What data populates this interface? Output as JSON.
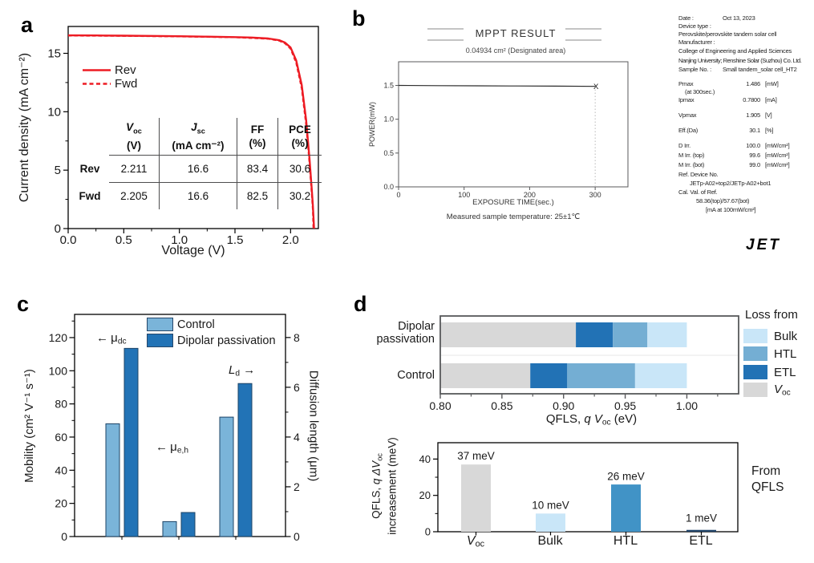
{
  "colors": {
    "red": "#ed1c24",
    "control_blue": "#7ab4d9",
    "dipolar_blue": "#2273b6",
    "bulk_blue": "#c9e6f8",
    "htl_blue": "#74aed3",
    "etl_blue": "#2272b5",
    "htl_solid": "#4193c6",
    "etl_dark": "#1f4469",
    "gray_bar": "#d8d8d8",
    "bar_edge": "#1d4467"
  },
  "panels": {
    "a": "a",
    "b": "b",
    "c": "c",
    "d": "d"
  },
  "panel_a": {
    "y_title": "Current density (mA cm⁻²)",
    "x_title": "Voltage (V)",
    "x_ticks": [
      "0.0",
      "0.5",
      "1.0",
      "1.5",
      "2.0"
    ],
    "y_ticks": [
      "0",
      "5",
      "10",
      "15"
    ],
    "legend": [
      {
        "label": "Rev"
      },
      {
        "label": "Fwd"
      }
    ],
    "table": {
      "headers": [
        {
          "sym": "V",
          "sub": "oc",
          "unit": "(V)"
        },
        {
          "sym": "J",
          "sub": "sc",
          "unit": "(mA cm⁻²)"
        },
        {
          "sym": "FF",
          "sub": "",
          "unit": "(%)"
        },
        {
          "sym": "PCE",
          "sub": "",
          "unit": "(%)"
        }
      ],
      "rows": [
        {
          "name": "Rev",
          "values": [
            "2.211",
            "16.6",
            "83.4",
            "30.6"
          ]
        },
        {
          "name": "Fwd",
          "values": [
            "2.205",
            "16.6",
            "82.5",
            "30.2"
          ]
        }
      ]
    }
  },
  "panel_b": {
    "title": "MPPT RESULT",
    "subtitle": "0.04934 cm² (Designated area)",
    "y_title": "POWER(mW)",
    "x_title": "EXPOSURE TIME(sec.)",
    "footnote": "Measured sample temperature: 25±1℃",
    "x_ticks": [
      "0",
      "100",
      "200",
      "300"
    ],
    "y_ticks": [
      "0.0",
      "0.5",
      "1.0",
      "1.5"
    ],
    "end_marker": "X",
    "logo": "JET",
    "info": [
      {
        "label": "Date :",
        "value": "Oct 13, 2023"
      },
      {
        "label": "Device type :"
      },
      {
        "label": "Perovskite/perovskite tandem solar cell"
      },
      {
        "label": "Manufacturer :"
      },
      {
        "label": "College of Engineering and Applied Sciences"
      },
      {
        "label": "Nanjing University; Renshine Solar (Suzhou) Co. Ltd."
      },
      {
        "label": "Sample No. :",
        "value": "Small tandem_solar cell_HT2"
      },
      {
        "label": "Pmax",
        "value": "1.486",
        "unit": "[mW]"
      },
      {
        "label": "(at 300sec.)"
      },
      {
        "label": "Ipmax",
        "value": "0.7800",
        "unit": "[mA]"
      },
      {
        "label": "Vpmax",
        "value": "1.905",
        "unit": "[V]"
      },
      {
        "label": "Eff.(Da)",
        "value": "30.1",
        "unit": "[%]"
      },
      {
        "label": "D Irr.",
        "value": "100.0",
        "unit": "[mW/cm²]"
      },
      {
        "label": "M Irr. (top)",
        "value": "99.6",
        "unit": "[mW/cm²]"
      },
      {
        "label": "M Irr. (bot)",
        "value": "99.0",
        "unit": "[mW/cm²]"
      },
      {
        "label": "Ref. Device No."
      },
      {
        "label": "JETp-A02+top2/JETp-A02+bot1"
      },
      {
        "label": "Cal. Val. of Ref."
      },
      {
        "label": "58.36(top)/57.67(bot)"
      },
      {
        "label": "[mA at 100mW/cm²]"
      }
    ]
  },
  "panel_c": {
    "y_left_title": "Mobility (cm² V⁻¹ s⁻¹)",
    "y_right_title": "Diffusion length (μm)",
    "left_ticks": [
      "0",
      "20",
      "40",
      "60",
      "80",
      "100",
      "120"
    ],
    "right_ticks": [
      "0",
      "2",
      "4",
      "6",
      "8"
    ],
    "legend": [
      {
        "label": "Control"
      },
      {
        "label": "Dipolar passivation"
      }
    ],
    "annotations": [
      {
        "arrow": "←",
        "main": "μ",
        "subscript": "dc"
      },
      {
        "arrow": "←",
        "main": "μ",
        "subscript": "e,h"
      },
      {
        "main": "L",
        "subscript": "d",
        "arrow": "→"
      }
    ]
  },
  "panel_d": {
    "top": {
      "row1_line1": "Dipolar",
      "row1_line2": "passivation",
      "row2": "Control",
      "x_ticks": [
        "0.80",
        "0.85",
        "0.90",
        "0.95",
        "1.00"
      ],
      "x_title_pre": "QFLS, ",
      "x_title_qv": "q V",
      "x_title_sub": "oc",
      "x_title_post": " (eV)",
      "legend_title": "Loss from",
      "legend": [
        {
          "label": "Bulk"
        },
        {
          "label": "HTL"
        },
        {
          "label": "ETL"
        },
        {
          "label_main": "V",
          "label_sub": "oc"
        }
      ]
    },
    "bottom": {
      "y_ticks": [
        "0",
        "20",
        "40"
      ],
      "y_title_pre": "QFLS, ",
      "y_title_it": "q ΔV",
      "y_title_sub": "oc",
      "y_title_line2": "increasement (meV)",
      "value_labels": [
        "37 meV",
        "10 meV",
        "26 meV",
        "1 meV"
      ],
      "cat_voc_main": "V",
      "cat_voc_sub": "oc",
      "cat_bulk": "Bulk",
      "cat_htl": "HTL",
      "cat_etl": "ETL",
      "note_line1": "From",
      "note_line2": "QFLS"
    }
  },
  "chart_data": [
    {
      "id": "a",
      "type": "line",
      "xlabel": "Voltage (V)",
      "ylabel": "Current density (mA cm-2)",
      "xlim": [
        0,
        2.25
      ],
      "ylim": [
        0,
        17.3
      ],
      "xticks": [
        0,
        0.5,
        1.0,
        1.5,
        2.0
      ],
      "yticks": [
        0,
        5,
        10,
        15
      ],
      "series": [
        {
          "name": "Rev",
          "style": "solid",
          "points": [
            [
              0,
              16.54
            ],
            [
              0.25,
              16.53
            ],
            [
              0.5,
              16.51
            ],
            [
              0.75,
              16.49
            ],
            [
              1.0,
              16.46
            ],
            [
              1.25,
              16.43
            ],
            [
              1.5,
              16.39
            ],
            [
              1.65,
              16.35
            ],
            [
              1.8,
              16.27
            ],
            [
              1.9,
              16.12
            ],
            [
              1.95,
              15.92
            ],
            [
              2.0,
              15.5
            ],
            [
              2.05,
              14.4
            ],
            [
              2.1,
              12.3
            ],
            [
              2.14,
              9.3
            ],
            [
              2.17,
              6.0
            ],
            [
              2.19,
              3.4
            ],
            [
              2.2,
              2.0
            ],
            [
              2.211,
              0
            ]
          ]
        },
        {
          "name": "Fwd",
          "style": "dashed",
          "points": [
            [
              0,
              16.52
            ],
            [
              0.5,
              16.49
            ],
            [
              1.0,
              16.44
            ],
            [
              1.5,
              16.37
            ],
            [
              1.8,
              16.24
            ],
            [
              1.9,
              16.07
            ],
            [
              1.95,
              15.85
            ],
            [
              2.0,
              15.4
            ],
            [
              2.05,
              14.2
            ],
            [
              2.1,
              12.0
            ],
            [
              2.14,
              8.9
            ],
            [
              2.17,
              5.6
            ],
            [
              2.19,
              3.0
            ],
            [
              2.2,
              1.6
            ],
            [
              2.205,
              0
            ]
          ]
        }
      ],
      "metrics": {
        "Rev": {
          "Voc_V": 2.211,
          "Jsc_mA_cm2": 16.6,
          "FF_pct": 83.4,
          "PCE_pct": 30.6
        },
        "Fwd": {
          "Voc_V": 2.205,
          "Jsc_mA_cm2": 16.6,
          "FF_pct": 82.5,
          "PCE_pct": 30.2
        }
      }
    },
    {
      "id": "b",
      "type": "line",
      "title": "MPPT RESULT",
      "xlabel": "EXPOSURE TIME(sec.)",
      "ylabel": "POWER(mW)",
      "xlim": [
        0,
        350
      ],
      "ylim": [
        0,
        1.85
      ],
      "xticks": [
        0,
        100,
        200,
        300
      ],
      "yticks": [
        0,
        0.5,
        1.0,
        1.5
      ],
      "series": [
        {
          "name": "Power",
          "points": [
            [
              0,
              1.5
            ],
            [
              60,
              1.497
            ],
            [
              120,
              1.494
            ],
            [
              180,
              1.492
            ],
            [
              240,
              1.489
            ],
            [
              300,
              1.486
            ]
          ]
        }
      ],
      "end_marker_x": 300
    },
    {
      "id": "c",
      "type": "bar",
      "ylabel_left": "Mobility (cm2 V-1 s-1)",
      "ylabel_right": "Diffusion length (um)",
      "ylim_left": [
        0,
        134
      ],
      "ylim_right": [
        0,
        8.93
      ],
      "legend": [
        "Control",
        "Dipolar passivation"
      ],
      "groups": [
        {
          "name": "mu_dc",
          "axis": "left",
          "control": 68,
          "dipolar": 113.5
        },
        {
          "name": "mu_e,h",
          "axis": "left",
          "control": 9,
          "dipolar": 14.5
        },
        {
          "name": "L_d",
          "axis": "right",
          "control": 4.8,
          "dipolar": 6.15
        }
      ]
    },
    {
      "id": "d_top",
      "type": "stacked_bar_horizontal",
      "xlabel": "QFLS, q Voc (eV)",
      "xlim": [
        0.8,
        1.042
      ],
      "xticks": [
        0.8,
        0.85,
        0.9,
        0.95,
        1.0
      ],
      "legend": [
        "Bulk",
        "HTL",
        "ETL",
        "Voc"
      ],
      "rows": [
        {
          "name": "Dipolar passivation",
          "voc": 0.91,
          "etl": 0.94,
          "htl": 0.968,
          "bulk": 1.0
        },
        {
          "name": "Control",
          "voc": 0.873,
          "etl": 0.903,
          "htl": 0.958,
          "bulk": 1.0
        }
      ]
    },
    {
      "id": "d_bottom",
      "type": "bar",
      "ylabel": "QFLS, q dVoc increasement (meV)",
      "ylim": [
        0,
        49
      ],
      "yticks": [
        0,
        20,
        40
      ],
      "categories": [
        "Voc",
        "Bulk",
        "HTL",
        "ETL"
      ],
      "values": [
        37,
        10,
        26,
        1
      ],
      "note": "From QFLS"
    }
  ]
}
